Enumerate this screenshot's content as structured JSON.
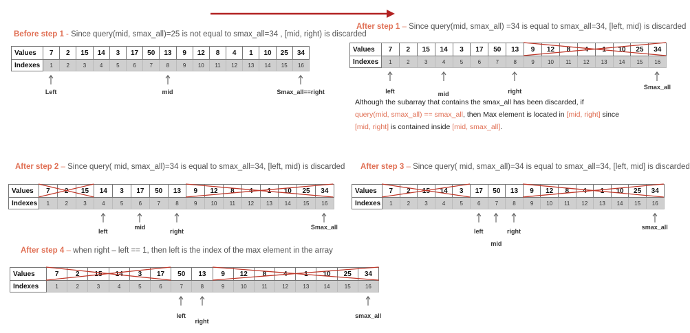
{
  "row_labels": {
    "values": "Values",
    "indexes": "Indexes"
  },
  "arrays": {
    "values": [
      "7",
      "2",
      "15",
      "14",
      "3",
      "17",
      "50",
      "13",
      "9",
      "12",
      "8",
      "4",
      "1",
      "10",
      "25",
      "34"
    ],
    "indexes": [
      "1",
      "2",
      "3",
      "4",
      "5",
      "6",
      "7",
      "8",
      "9",
      "10",
      "11",
      "12",
      "13",
      "14",
      "15",
      "16"
    ]
  },
  "panels": [
    {
      "id": "before1",
      "heading": {
        "step": "Before step 1",
        "dash": " - ",
        "text": "Since  query(mid, smax_all)=25 is not equal to smax_all=34 , [mid, right) is discarded"
      },
      "pointers": [
        "Left",
        "mid",
        "Smax_all==right"
      ]
    },
    {
      "id": "after1",
      "heading": {
        "step": "After step 1",
        "dash": " – ",
        "text": "Since  query(mid, smax_all) =34  is equal to smax_all=34, [left, mid) is discarded"
      },
      "pointers": [
        "left",
        "mid",
        "right",
        "Smax_all"
      ]
    },
    {
      "id": "after2",
      "heading": {
        "step": "After step 2",
        "dash": " – ",
        "text": "Since  query( mid, smax_all)=34  is equal to smax_all=34, [left, mid) is discarded"
      },
      "pointers": [
        "left",
        "mid",
        "right",
        "Smax_all"
      ]
    },
    {
      "id": "after3",
      "heading": {
        "step": "After step 3",
        "dash": " – ",
        "text": "Since  query( mid, smax_all)=34  is equal to smax_all=34, [left, mid] is discarded"
      },
      "pointers": [
        "left",
        "mid",
        "right",
        "smax_all"
      ]
    },
    {
      "id": "after4",
      "heading": {
        "step": "After step 4",
        "dash": " – ",
        "text": "when  right – left == 1, then left is the index of the max element in the array"
      },
      "pointers": [
        "left",
        "right",
        "smax_all"
      ]
    }
  ],
  "note": {
    "line1": "Although the subarray that contains the smax_all has been discarded, if",
    "line2_red1": "query(mid, smax_all) == smax_all",
    "line2_mid": ", then Max element is located in ",
    "line2_red2": "[mid, right]",
    "line2_end": " since",
    "line3_red": "[mid, right]",
    "line3_mid": " is contained inside ",
    "line3_red2": "[mid, smax_all]",
    "line3_end": "."
  },
  "colors": {
    "accent": "#e07055",
    "cross": "#c0392b",
    "arrow": "#b22222"
  }
}
